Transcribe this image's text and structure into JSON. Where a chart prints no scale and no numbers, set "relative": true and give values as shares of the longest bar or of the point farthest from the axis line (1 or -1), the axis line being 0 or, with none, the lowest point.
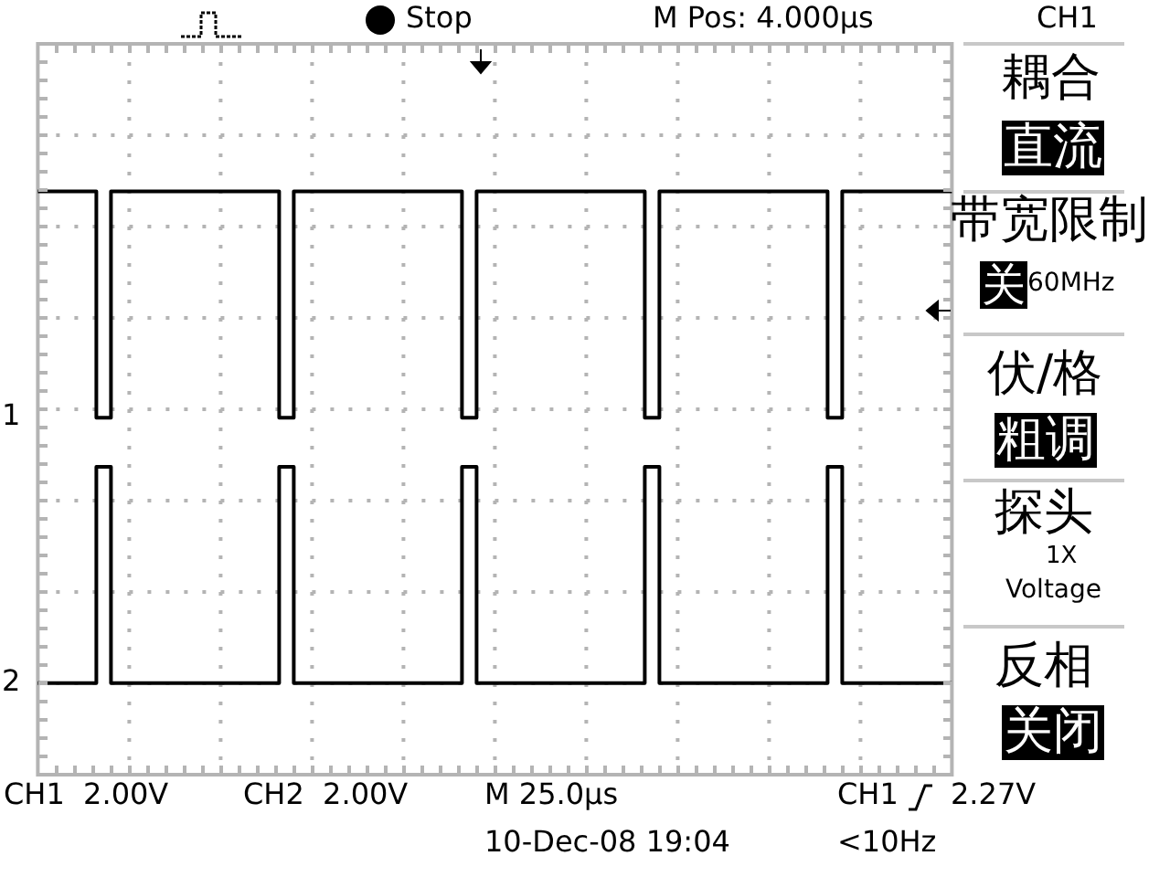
{
  "chart_data": {
    "type": "step",
    "relative": true,
    "grid": true,
    "legend": "left",
    "categories": [
      null,
      null,
      null,
      null,
      null,
      null,
      null,
      null,
      null,
      null,
      null,
      null,
      null,
      null,
      null,
      null,
      null,
      null,
      null,
      null,
      null,
      null,
      null,
      null,
      null,
      null,
      null,
      null,
      null,
      null,
      null,
      null,
      null,
      null,
      null,
      null,
      null,
      null,
      null,
      null,
      null,
      null,
      null,
      null,
      null,
      null,
      null,
      null,
      null,
      null,
      null,
      null,
      null,
      null,
      null,
      null,
      null,
      null,
      null,
      null,
      null,
      null,
      null,
      null,
      null,
      null,
      null,
      null,
      null,
      null,
      null,
      null,
      null,
      null,
      null,
      null,
      null,
      null,
      null,
      null,
      null,
      null,
      null,
      null,
      null,
      null,
      null,
      null,
      null,
      null,
      null,
      null,
      null,
      null,
      null,
      null,
      null,
      null,
      null,
      null,
      null,
      null,
      null,
      null,
      null,
      null,
      null,
      null,
      null,
      null,
      null,
      null,
      null,
      null,
      null,
      null,
      null,
      null,
      null,
      null,
      null,
      null,
      null,
      null,
      null,
      null
    ],
    "series": [
      {
        "name": "1",
        "color": "#000000",
        "values": [
          1,
          1,
          1,
          1,
          1,
          1,
          1,
          1,
          1,
          0.54,
          0.54,
          1,
          1,
          1,
          1,
          1,
          1,
          1,
          1,
          1,
          1,
          1,
          1,
          1,
          1,
          1,
          1,
          1,
          1,
          1,
          1,
          1,
          1,
          1,
          0.54,
          0.54,
          1,
          1,
          1,
          1,
          1,
          1,
          1,
          1,
          1,
          1,
          1,
          1,
          1,
          1,
          1,
          1,
          1,
          1,
          1,
          1,
          1,
          1,
          1,
          0.54,
          0.54,
          1,
          1,
          1,
          1,
          1,
          1,
          1,
          1,
          1,
          1,
          1,
          1,
          1,
          1,
          1,
          1,
          1,
          1,
          1,
          1,
          1,
          1,
          1,
          0.54,
          0.54,
          1,
          1,
          1,
          1,
          1,
          1,
          1,
          1,
          1,
          1,
          1,
          1,
          1,
          1,
          1,
          1,
          1,
          1,
          1,
          1,
          1,
          1,
          1,
          0.54,
          0.54,
          1,
          1,
          1,
          1,
          1,
          1,
          1,
          1,
          1,
          1,
          1,
          1,
          1,
          1,
          1
        ]
      },
      {
        "name": "2",
        "color": "#000000",
        "values": [
          0,
          0,
          0,
          0,
          0,
          0,
          0,
          0,
          0,
          0.44,
          0.44,
          0,
          0,
          0,
          0,
          0,
          0,
          0,
          0,
          0,
          0,
          0,
          0,
          0,
          0,
          0,
          0,
          0,
          0,
          0,
          0,
          0,
          0,
          0,
          0.44,
          0.44,
          0,
          0,
          0,
          0,
          0,
          0,
          0,
          0,
          0,
          0,
          0,
          0,
          0,
          0,
          0,
          0,
          0,
          0,
          0,
          0,
          0,
          0,
          0,
          0.44,
          0.44,
          0,
          0,
          0,
          0,
          0,
          0,
          0,
          0,
          0,
          0,
          0,
          0,
          0,
          0,
          0,
          0,
          0,
          0,
          0,
          0,
          0,
          0,
          0,
          0.44,
          0.44,
          0,
          0,
          0,
          0,
          0,
          0,
          0,
          0,
          0,
          0,
          0,
          0,
          0,
          0,
          0,
          0,
          0,
          0,
          0,
          0,
          0,
          0,
          0,
          0.44,
          0.44,
          0,
          0,
          0,
          0,
          0,
          0,
          0,
          0,
          0,
          0,
          0,
          0,
          0,
          0,
          0
        ]
      }
    ],
    "annotations": [
      "Stop",
      "M Pos: 4.000µs",
      "CH1",
      "耦合",
      "直流",
      "带宽限制",
      "关",
      "60MHz",
      "伏/格",
      "粗调",
      "探头",
      "1X",
      "Voltage",
      "反相",
      "关闭",
      "CH1  2.00V",
      "CH2  2.00V",
      "M 25.0µs",
      "CH1",
      "2.27V",
      "10-Dec-08 19:04",
      "<10Hz"
    ]
  }
}
